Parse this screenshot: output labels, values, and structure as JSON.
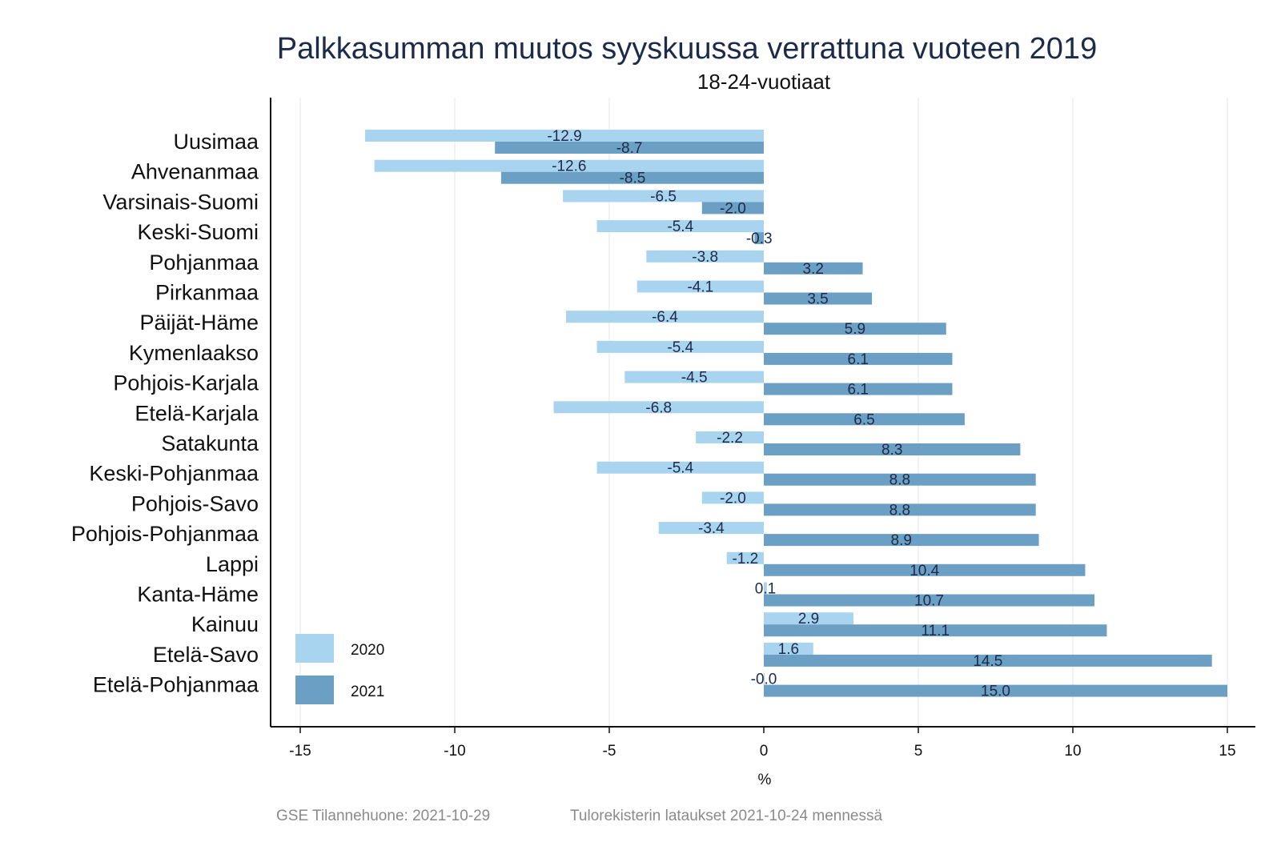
{
  "chart_data": {
    "type": "bar",
    "orientation": "horizontal",
    "title": "Palkkasumman muutos syyskuussa verrattuna vuoteen 2019",
    "subtitle": "18-24-vuotiaat",
    "xlabel": "%",
    "ylabel": "",
    "xlim": [
      -16,
      16
    ],
    "xticks": [
      -15,
      -10,
      -5,
      0,
      5,
      10,
      15
    ],
    "xtick_labels": [
      "-15",
      "-10",
      "-5",
      "0",
      "5",
      "10",
      "15"
    ],
    "grid": "vertical",
    "legend_position": "bottom-left",
    "categories": [
      "Uusimaa",
      "Ahvenanmaa",
      "Varsinais-Suomi",
      "Keski-Suomi",
      "Pohjanmaa",
      "Pirkanmaa",
      "Päijät-Häme",
      "Kymenlaakso",
      "Pohjois-Karjala",
      "Etelä-Karjala",
      "Satakunta",
      "Keski-Pohjanmaa",
      "Pohjois-Savo",
      "Pohjois-Pohjanmaa",
      "Lappi",
      "Kanta-Häme",
      "Kainuu",
      "Etelä-Savo",
      "Etelä-Pohjanmaa"
    ],
    "series": [
      {
        "name": "2020",
        "color": "#a9d4f0",
        "values": [
          -12.9,
          -12.6,
          -6.5,
          -5.4,
          -3.8,
          -4.1,
          -6.4,
          -5.4,
          -4.5,
          -6.8,
          -2.2,
          -5.4,
          -2.0,
          -3.4,
          -1.2,
          0.1,
          2.9,
          1.6,
          -0.0
        ],
        "labels": [
          "-12.9",
          "-12.6",
          "-6.5",
          "-5.4",
          "-3.8",
          "-4.1",
          "-6.4",
          "-5.4",
          "-4.5",
          "-6.8",
          "-2.2",
          "-5.4",
          "-2.0",
          "-3.4",
          "-1.2",
          "0.1",
          "2.9",
          "1.6",
          "-0.0"
        ]
      },
      {
        "name": "2021",
        "color": "#6b9fc4",
        "values": [
          -8.7,
          -8.5,
          -2.0,
          -0.3,
          3.2,
          3.5,
          5.9,
          6.1,
          6.1,
          6.5,
          8.3,
          8.8,
          8.8,
          8.9,
          10.4,
          10.7,
          11.1,
          14.5,
          15.0
        ],
        "labels": [
          "-8.7",
          "-8.5",
          "-2.0",
          "-0.3",
          "3.2",
          "3.5",
          "5.9",
          "6.1",
          "6.1",
          "6.5",
          "8.3",
          "8.8",
          "8.8",
          "8.9",
          "10.4",
          "10.7",
          "11.1",
          "14.5",
          "15.0"
        ]
      }
    ],
    "label_color": "#1c2b4a"
  },
  "footer": {
    "left": "GSE Tilannehuone: 2021-10-29",
    "right": "Tulorekisterin lataukset 2021-10-24 mennessä"
  }
}
